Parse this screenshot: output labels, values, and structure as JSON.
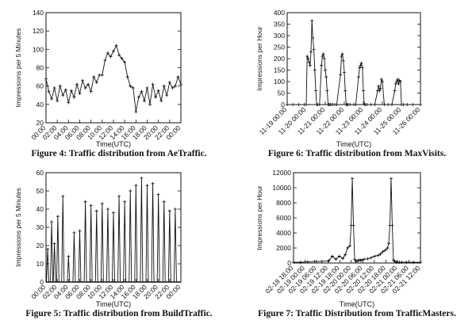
{
  "chart_data": [
    {
      "type": "line",
      "ylabel": "Impressions per 5 Minutes",
      "xlabel": "Time(UTC)",
      "ylim": [
        20,
        140
      ],
      "yticks": [
        20,
        40,
        60,
        80,
        100,
        120,
        140
      ],
      "xticks": [
        "00:00",
        "02:00",
        "04:00",
        "06:00",
        "08:00",
        "10:00",
        "12:00",
        "14:00",
        "16:00",
        "18:00",
        "20:00",
        "22:00",
        "00:00"
      ],
      "caption": "Figure 4:  Traffic distribution from AeTraffic.",
      "series": [
        {
          "x": [
            0,
            0.5,
            1,
            1.5,
            2,
            2.5,
            3,
            3.5,
            4,
            4.5,
            5,
            5.5,
            6,
            6.5,
            7,
            7.5,
            8,
            8.5,
            9,
            9.5,
            10,
            10.5,
            11,
            11.5,
            12,
            12.5,
            13,
            13.5,
            14,
            14.5,
            15,
            15.5,
            16,
            16.5,
            17,
            17.5,
            18,
            18.5,
            19,
            19.5,
            20,
            20.5,
            21,
            21.5,
            22,
            22.5,
            23,
            23.5,
            24
          ],
          "y": [
            68,
            54,
            46,
            58,
            44,
            60,
            50,
            56,
            42,
            55,
            48,
            62,
            52,
            66,
            58,
            62,
            54,
            70,
            64,
            72,
            72,
            88,
            96,
            92,
            98,
            104,
            94,
            90,
            86,
            70,
            60,
            58,
            32,
            48,
            54,
            44,
            58,
            40,
            62,
            48,
            55,
            44,
            60,
            50,
            64,
            58,
            60,
            70,
            62
          ]
        }
      ]
    },
    {
      "type": "line",
      "ylabel": "Impressions per Hour",
      "xlabel": "Time(UTC)",
      "ylim": [
        0,
        400
      ],
      "yticks": [
        0,
        50,
        100,
        150,
        200,
        250,
        300,
        350,
        400
      ],
      "xticks": [
        "11-19 00:00",
        "11-20 00:00",
        "11-21 00:00",
        "11-22 00:00",
        "11-23 00:00",
        "11-24 00:00",
        "11-25 00:00",
        "11-26 00:00"
      ],
      "caption": "Figure 6:   Traffic distribution from MaxVisits.",
      "series": [
        {
          "x": [
            0,
            0.3,
            0.6,
            0.9,
            1.0,
            1.05,
            1.1,
            1.15,
            1.2,
            1.25,
            1.3,
            1.35,
            1.4,
            1.45,
            1.5,
            1.55,
            1.6,
            1.7,
            1.8,
            1.85,
            1.9,
            1.95,
            2.0,
            2.05,
            2.1,
            2.15,
            2.2,
            2.25,
            2.3,
            2.4,
            2.5,
            2.6,
            2.8,
            2.85,
            2.9,
            2.95,
            3.0,
            3.05,
            3.1,
            3.15,
            3.2,
            3.3,
            3.5,
            3.6,
            3.75,
            3.8,
            3.85,
            3.9,
            3.95,
            4.0,
            4.05,
            4.1,
            4.2,
            4.4,
            4.6,
            4.75,
            4.8,
            4.85,
            4.9,
            4.95,
            5.0,
            5.1,
            5.3,
            5.5,
            5.65,
            5.7,
            5.75,
            5.8,
            5.85,
            5.9,
            5.95,
            6.0,
            6.1,
            6.3,
            6.6,
            7.0
          ],
          "y": [
            0,
            0,
            0,
            0,
            0,
            210,
            200,
            185,
            170,
            230,
            365,
            290,
            240,
            150,
            60,
            0,
            0,
            0,
            170,
            210,
            220,
            200,
            150,
            120,
            60,
            0,
            0,
            0,
            0,
            0,
            0,
            0,
            130,
            210,
            220,
            190,
            140,
            60,
            0,
            0,
            0,
            0,
            0,
            0,
            120,
            160,
            170,
            180,
            160,
            60,
            0,
            0,
            0,
            0,
            0,
            60,
            80,
            60,
            70,
            110,
            100,
            0,
            0,
            0,
            60,
            90,
            100,
            110,
            90,
            105,
            100,
            0,
            0,
            0,
            0,
            0
          ]
        }
      ]
    },
    {
      "type": "line",
      "ylabel": "Impressions per 5 Minutes",
      "xlabel": "Time(UTC)",
      "ylim": [
        0,
        60
      ],
      "yticks": [
        0,
        10,
        20,
        30,
        40,
        50,
        60
      ],
      "xticks": [
        "00:00",
        "02:00",
        "04:00",
        "06:00",
        "08:00",
        "10:00",
        "12:00",
        "14:00",
        "16:00",
        "18:00",
        "20:00",
        "22:00",
        "00:00"
      ],
      "caption": "Figure 5:  Traffic distribution from BuildTraffic.",
      "spikes": [
        {
          "x": 0.3,
          "y": 18
        },
        {
          "x": 1.0,
          "y": 33
        },
        {
          "x": 1.5,
          "y": 21
        },
        {
          "x": 2.1,
          "y": 36
        },
        {
          "x": 3.0,
          "y": 47
        },
        {
          "x": 4.0,
          "y": 14
        },
        {
          "x": 5.0,
          "y": 27
        },
        {
          "x": 6.0,
          "y": 28
        },
        {
          "x": 7.0,
          "y": 44
        },
        {
          "x": 8.0,
          "y": 42
        },
        {
          "x": 9.0,
          "y": 39
        },
        {
          "x": 10.0,
          "y": 43
        },
        {
          "x": 11.0,
          "y": 40
        },
        {
          "x": 12.0,
          "y": 38
        },
        {
          "x": 13.0,
          "y": 47
        },
        {
          "x": 14.0,
          "y": 44
        },
        {
          "x": 15.0,
          "y": 50
        },
        {
          "x": 16.0,
          "y": 53
        },
        {
          "x": 17.0,
          "y": 57
        },
        {
          "x": 18.0,
          "y": 53
        },
        {
          "x": 19.0,
          "y": 54
        },
        {
          "x": 20.0,
          "y": 48
        },
        {
          "x": 21.0,
          "y": 44
        },
        {
          "x": 22.0,
          "y": 39
        },
        {
          "x": 23.0,
          "y": 40
        }
      ]
    },
    {
      "type": "line",
      "ylabel": "Impressions per Hour",
      "xlabel": "Time(UTC)",
      "ylim": [
        0,
        12000
      ],
      "yticks": [
        0,
        2000,
        4000,
        6000,
        8000,
        10000,
        12000
      ],
      "xticks": [
        "02-18 18:00",
        "02-19 00:00",
        "02-19 06:00",
        "02-19 12:00",
        "02-19 18:00",
        "02-20 00:00",
        "02-20 06:00",
        "02-20 12:00",
        "02-20 18:00",
        "02-21 00:00",
        "02-21 06:00",
        "02-21 12:00"
      ],
      "caption": "Figure 7:  Traffic Distribution from TrafficMasters.",
      "series": [
        {
          "x": [
            0,
            6,
            12,
            18,
            24,
            30,
            33,
            36,
            39,
            42,
            44,
            46,
            48,
            49,
            50,
            51,
            52,
            53,
            54,
            55,
            56,
            57,
            58,
            60,
            63,
            66,
            69,
            72,
            74,
            76,
            78,
            80,
            81,
            82,
            83,
            84,
            85,
            86,
            87,
            88,
            90,
            92,
            96,
            102,
            108
          ],
          "y": [
            100,
            100,
            150,
            200,
            200,
            300,
            900,
            500,
            900,
            600,
            1100,
            2000,
            2300,
            5000,
            11200,
            5000,
            500,
            200,
            300,
            300,
            400,
            350,
            400,
            500,
            550,
            700,
            900,
            1000,
            1200,
            1500,
            1700,
            2000,
            2600,
            5000,
            11200,
            5000,
            400,
            200,
            150,
            100,
            100,
            100,
            100,
            100,
            100
          ]
        }
      ]
    }
  ]
}
